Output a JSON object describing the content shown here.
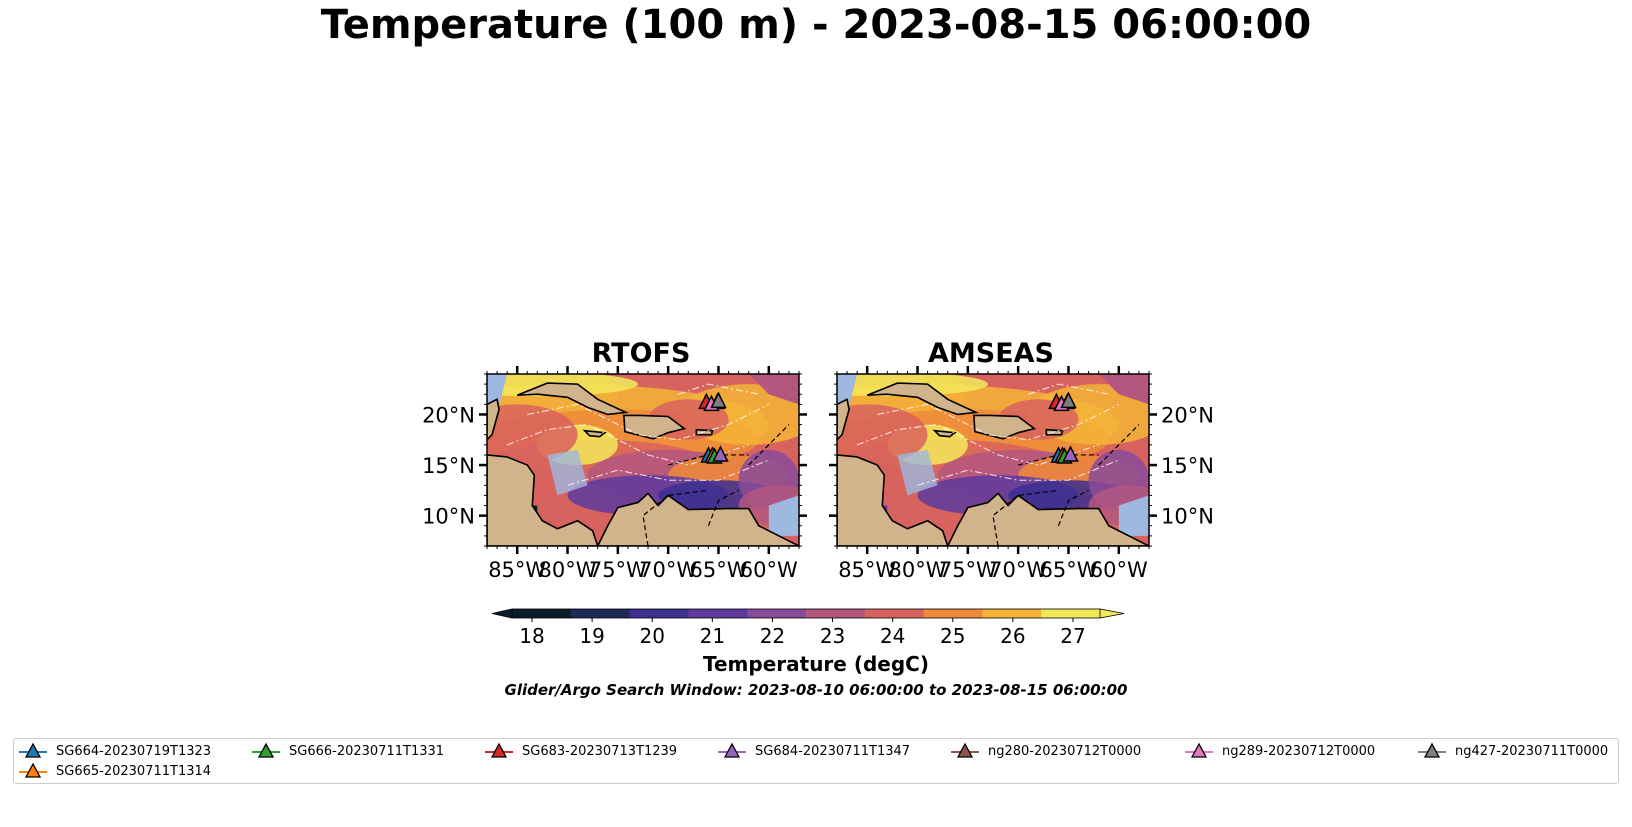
{
  "figure": {
    "title": "Temperature (100 m) - 2023-08-15 06:00:00",
    "subtitle": "Glider/Argo Search Window: 2023-08-10 06:00:00 to 2023-08-15 06:00:00"
  },
  "panels": [
    {
      "title": "RTOFS",
      "lat_ticks": [
        "20°N",
        "15°N",
        "10°N"
      ],
      "lon_ticks": [
        "85°W",
        "80°W",
        "75°W",
        "70°W",
        "65°W",
        "60°W"
      ]
    },
    {
      "title": "AMSEAS",
      "lat_ticks": [
        "20°N",
        "15°N",
        "10°N"
      ],
      "lon_ticks": [
        "85°W",
        "80°W",
        "75°W",
        "70°W",
        "65°W",
        "60°W"
      ]
    }
  ],
  "colorbar": {
    "label": "Temperature (degC)",
    "ticks": [
      "18",
      "19",
      "20",
      "21",
      "22",
      "23",
      "24",
      "25",
      "26",
      "27"
    ],
    "extend": "both",
    "colors": [
      "#0b1f2a",
      "#1f2a5a",
      "#3b2f8f",
      "#5e3a9e",
      "#8a4a9a",
      "#b4577f",
      "#d8635e",
      "#ee8a3a",
      "#f5b437",
      "#f2e95a"
    ]
  },
  "legend": {
    "entries": [
      {
        "label": "SG664-20230719T1323",
        "color": "#1f77b4"
      },
      {
        "label": "SG665-20230711T1314",
        "color": "#ff7f0e"
      },
      {
        "label": "SG666-20230711T1331",
        "color": "#2ca02c"
      },
      {
        "label": "SG683-20230713T1239",
        "color": "#d62728"
      },
      {
        "label": "SG684-20230711T1347",
        "color": "#9467bd"
      },
      {
        "label": "ng280-20230712T0000",
        "color": "#8c564b"
      },
      {
        "label": "ng289-20230712T0000",
        "color": "#e377c2"
      },
      {
        "label": "ng427-20230711T0000",
        "color": "#7f7f7f"
      }
    ]
  },
  "chart_data": {
    "type": "heatmap",
    "variable": "Temperature (degC)",
    "depth": "100 m",
    "lon_range": [
      -88,
      -57
    ],
    "lat_range": [
      7,
      24
    ],
    "color_range": [
      18,
      27
    ],
    "colors": {
      "land": "#d2b48c",
      "ocean_mask": "#9fb8e0"
    },
    "platform_positions": [
      {
        "name": "SG664-20230719T1323",
        "lon": -66.0,
        "lat": 15.9
      },
      {
        "name": "SG665-20230711T1314",
        "lon": -65.6,
        "lat": 15.9
      },
      {
        "name": "SG666-20230711T1331",
        "lon": -65.4,
        "lat": 15.8
      },
      {
        "name": "SG683-20230713T1239",
        "lon": -66.2,
        "lat": 21.2
      },
      {
        "name": "SG684-20230711T1347",
        "lon": -64.8,
        "lat": 16.0
      },
      {
        "name": "ng280-20230712T0000",
        "lon": -65.1,
        "lat": 21.2
      },
      {
        "name": "ng289-20230712T0000",
        "lon": -65.7,
        "lat": 21.0
      },
      {
        "name": "ng427-20230711T0000",
        "lon": -65.0,
        "lat": 21.3
      }
    ]
  }
}
